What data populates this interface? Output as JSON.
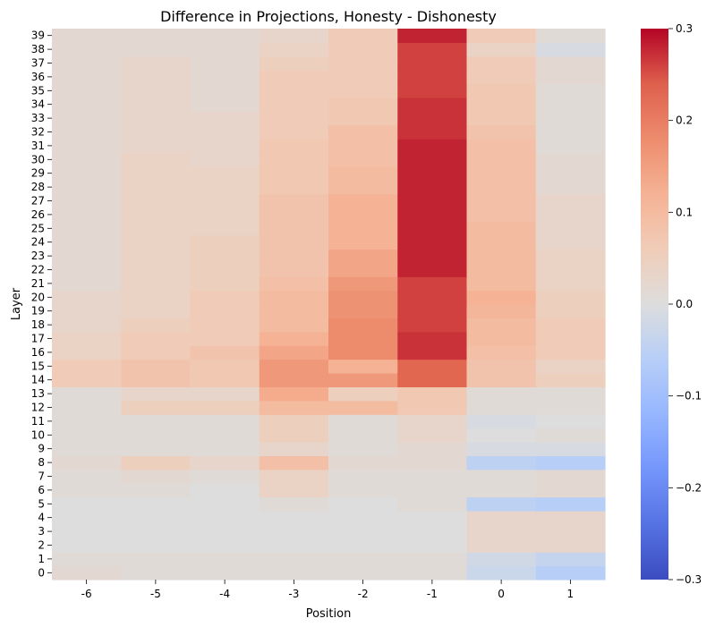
{
  "chart_data": {
    "type": "heatmap",
    "title": "Difference in Projections, Honesty - Dishonesty",
    "xlabel": "Position",
    "ylabel": "Layer",
    "x_categories": [
      "-6",
      "-5",
      "-4",
      "-3",
      "-2",
      "-1",
      "0",
      "1"
    ],
    "y_categories": [
      "0",
      "1",
      "2",
      "3",
      "4",
      "5",
      "6",
      "7",
      "8",
      "9",
      "10",
      "11",
      "12",
      "13",
      "14",
      "15",
      "16",
      "17",
      "18",
      "19",
      "20",
      "21",
      "22",
      "23",
      "24",
      "25",
      "26",
      "27",
      "28",
      "29",
      "30",
      "31",
      "32",
      "33",
      "34",
      "35",
      "36",
      "37",
      "38",
      "39"
    ],
    "colormap": "coolwarm",
    "vmin": -0.3,
    "vmax": 0.3,
    "colorbar_ticks": [
      -0.3,
      -0.2,
      -0.1,
      0.0,
      0.1,
      0.2,
      0.3
    ],
    "colorbar_tick_labels": [
      "−0.3",
      "−0.2",
      "−0.1",
      "0.0",
      "0.1",
      "0.2",
      "0.3"
    ],
    "values": [
      [
        0.02,
        0.01,
        0.01,
        0.01,
        0.01,
        0.01,
        -0.03,
        -0.06
      ],
      [
        0.01,
        0.01,
        0.01,
        0.01,
        0.01,
        0.01,
        -0.02,
        -0.04
      ],
      [
        0.0,
        0.0,
        0.0,
        0.0,
        0.0,
        0.0,
        0.03,
        0.03
      ],
      [
        0.0,
        0.0,
        0.0,
        0.0,
        0.0,
        0.0,
        0.03,
        0.03
      ],
      [
        0.0,
        0.0,
        0.0,
        0.0,
        0.0,
        0.0,
        0.03,
        0.03
      ],
      [
        0.0,
        0.0,
        0.0,
        0.01,
        0.0,
        0.01,
        -0.05,
        -0.06
      ],
      [
        0.01,
        0.01,
        0.0,
        0.04,
        0.01,
        0.01,
        0.01,
        0.02
      ],
      [
        0.01,
        0.02,
        0.01,
        0.04,
        0.01,
        0.01,
        0.01,
        0.02
      ],
      [
        0.02,
        0.05,
        0.03,
        0.09,
        0.02,
        0.02,
        -0.05,
        -0.06
      ],
      [
        0.01,
        0.01,
        0.01,
        0.03,
        0.01,
        0.02,
        -0.01,
        -0.01
      ],
      [
        0.01,
        0.01,
        0.01,
        0.05,
        0.01,
        0.03,
        0.0,
        0.01
      ],
      [
        0.01,
        0.01,
        0.01,
        0.05,
        0.01,
        0.03,
        -0.01,
        0.0
      ],
      [
        0.01,
        0.05,
        0.05,
        0.1,
        0.1,
        0.07,
        0.01,
        0.01
      ],
      [
        0.01,
        0.03,
        0.03,
        0.13,
        0.05,
        0.07,
        0.01,
        0.01
      ],
      [
        0.06,
        0.08,
        0.07,
        0.16,
        0.16,
        0.23,
        0.08,
        0.05
      ],
      [
        0.06,
        0.08,
        0.07,
        0.16,
        0.12,
        0.23,
        0.08,
        0.04
      ],
      [
        0.04,
        0.06,
        0.08,
        0.14,
        0.18,
        0.27,
        0.09,
        0.06
      ],
      [
        0.04,
        0.06,
        0.06,
        0.12,
        0.18,
        0.27,
        0.1,
        0.06
      ],
      [
        0.03,
        0.05,
        0.06,
        0.1,
        0.18,
        0.26,
        0.1,
        0.06
      ],
      [
        0.03,
        0.04,
        0.06,
        0.1,
        0.17,
        0.26,
        0.11,
        0.05
      ],
      [
        0.03,
        0.04,
        0.06,
        0.1,
        0.17,
        0.26,
        0.12,
        0.05
      ],
      [
        0.02,
        0.04,
        0.05,
        0.09,
        0.16,
        0.26,
        0.1,
        0.04
      ],
      [
        0.02,
        0.04,
        0.05,
        0.08,
        0.14,
        0.28,
        0.1,
        0.04
      ],
      [
        0.02,
        0.04,
        0.05,
        0.08,
        0.14,
        0.28,
        0.1,
        0.04
      ],
      [
        0.02,
        0.04,
        0.05,
        0.08,
        0.12,
        0.28,
        0.1,
        0.03
      ],
      [
        0.02,
        0.04,
        0.04,
        0.08,
        0.12,
        0.28,
        0.1,
        0.03
      ],
      [
        0.02,
        0.04,
        0.04,
        0.08,
        0.12,
        0.28,
        0.09,
        0.03
      ],
      [
        0.02,
        0.04,
        0.04,
        0.08,
        0.12,
        0.28,
        0.09,
        0.03
      ],
      [
        0.02,
        0.04,
        0.04,
        0.07,
        0.1,
        0.28,
        0.09,
        0.02
      ],
      [
        0.02,
        0.04,
        0.04,
        0.07,
        0.1,
        0.28,
        0.09,
        0.02
      ],
      [
        0.02,
        0.04,
        0.03,
        0.07,
        0.09,
        0.28,
        0.09,
        0.02
      ],
      [
        0.02,
        0.03,
        0.03,
        0.07,
        0.09,
        0.28,
        0.09,
        0.01
      ],
      [
        0.02,
        0.03,
        0.03,
        0.06,
        0.09,
        0.27,
        0.08,
        0.01
      ],
      [
        0.02,
        0.03,
        0.03,
        0.06,
        0.07,
        0.27,
        0.07,
        0.01
      ],
      [
        0.02,
        0.03,
        0.02,
        0.06,
        0.07,
        0.27,
        0.07,
        0.01
      ],
      [
        0.02,
        0.03,
        0.02,
        0.06,
        0.06,
        0.26,
        0.07,
        0.01
      ],
      [
        0.02,
        0.03,
        0.02,
        0.06,
        0.06,
        0.26,
        0.06,
        0.02
      ],
      [
        0.02,
        0.03,
        0.02,
        0.05,
        0.06,
        0.26,
        0.06,
        0.02
      ],
      [
        0.02,
        0.02,
        0.02,
        0.04,
        0.06,
        0.26,
        0.04,
        -0.01
      ],
      [
        0.02,
        0.02,
        0.02,
        0.03,
        0.06,
        0.28,
        0.06,
        0.01
      ]
    ]
  }
}
